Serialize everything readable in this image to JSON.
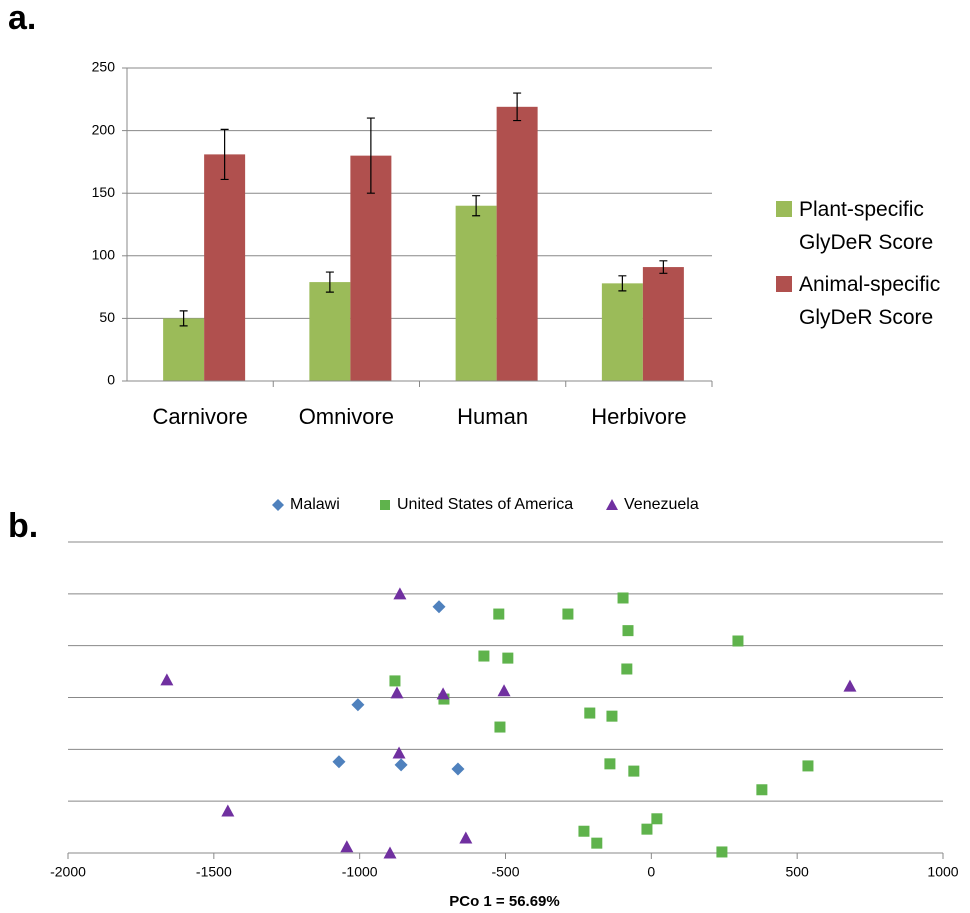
{
  "chart_data": [
    {
      "type": "bar",
      "panel_label": "a.",
      "categories": [
        "Carnivore",
        "Omnivore",
        "Human",
        "Herbivore"
      ],
      "series": [
        {
          "name": "Plant-specific GlyDeR Score",
          "color": "#9bbb59",
          "values": [
            50,
            79,
            140,
            78
          ],
          "errors": [
            6,
            8,
            8,
            6
          ]
        },
        {
          "name": "Animal-specific GlyDeR Score",
          "color": "#b0504e",
          "values": [
            181,
            180,
            219,
            91
          ],
          "errors": [
            20,
            30,
            11,
            5
          ]
        }
      ],
      "ylim": [
        0,
        250
      ],
      "yticks": [
        0,
        50,
        100,
        150,
        200,
        250
      ],
      "grid": true,
      "legend": "right"
    },
    {
      "type": "scatter",
      "panel_label": "b.",
      "x_label": "PCo 1 = 56.69%",
      "series": [
        {
          "name": "Malawi",
          "color": "#4f81bd",
          "marker": "diamond",
          "x": [
            -728,
            -1006,
            -1071,
            -858,
            -663
          ],
          "y": [
            0.175,
            -0.014,
            -0.124,
            -0.13,
            -0.138
          ]
        },
        {
          "name": "United States of America",
          "color": "#5fb34c",
          "marker": "square",
          "x": [
            -97,
            -523,
            -286,
            -80,
            297,
            -574,
            -492,
            -879,
            -711,
            -84,
            -211,
            -135,
            -519,
            -142,
            -60,
            537,
            379,
            19,
            -15,
            -231,
            -187,
            242
          ],
          "y": [
            0.192,
            0.161,
            0.161,
            0.129,
            0.109,
            0.08,
            0.076,
            0.032,
            -0.003,
            0.055,
            -0.03,
            -0.036,
            -0.057,
            -0.128,
            -0.142,
            -0.132,
            -0.178,
            -0.234,
            -0.254,
            -0.258,
            -0.281,
            -0.298
          ]
        },
        {
          "name": "Venezuela",
          "color": "#7030a0",
          "marker": "triangle",
          "x": [
            -862,
            -1661,
            -872,
            -714,
            -505,
            681,
            -865,
            -1452,
            -636,
            -1044,
            -896
          ],
          "y": [
            0.2,
            0.034,
            0.009,
            0.007,
            0.013,
            0.022,
            -0.107,
            -0.219,
            -0.271,
            -0.288,
            -0.3
          ]
        }
      ],
      "xlim": [
        -2000,
        1000
      ],
      "xticks": [
        -2000,
        -1500,
        -1000,
        -500,
        0,
        500,
        1000
      ],
      "ylim": [
        -0.3,
        0.3
      ],
      "yticks": [
        -0.3,
        -0.2,
        -0.1,
        0,
        0.1,
        0.2,
        0.3
      ],
      "ytick_labels": false,
      "grid": true,
      "legend": "top"
    }
  ]
}
